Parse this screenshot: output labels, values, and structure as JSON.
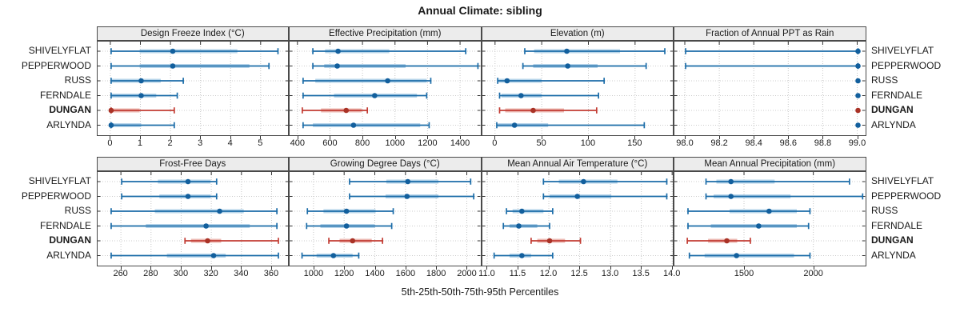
{
  "title": "Annual Climate: sibling",
  "xlabel": "5th-25th-50th-75th-95th Percentiles",
  "percentile_levels": [
    "5th",
    "25th",
    "50th",
    "75th",
    "95th"
  ],
  "sites": [
    "SHIVELYFLAT",
    "PEPPERWOOD",
    "RUSS",
    "FERNDALE",
    "DUNGAN",
    "ARLYNDA"
  ],
  "highlight_site": "DUNGAN",
  "colors": {
    "blue_line": "#1b6ca8",
    "blue_band": "#a9cce6",
    "blue_dot": "#125f9d",
    "red_line": "#c23b32",
    "red_band": "#e9aba4",
    "red_dot": "#a93226",
    "grid": "#c6c6c6",
    "row_grid": "#cccccc",
    "strip_bg": "#ececec",
    "border": "#4a4a4a",
    "tick": "#333333"
  },
  "chart_data": [
    {
      "type": "interval",
      "title": "Design Freeze Index (°C)",
      "grid_position": {
        "row": 0,
        "col": 0
      },
      "xlim": [
        -0.45,
        5.95
      ],
      "ticks": [
        0,
        1,
        2,
        3,
        4,
        5
      ],
      "tick_labels": [
        "0",
        "1",
        "2",
        "3",
        "4",
        "5"
      ],
      "series": [
        {
          "site": "SHIVELYFLAT",
          "p": [
            0,
            0.95,
            2.05,
            4.2,
            5.55
          ]
        },
        {
          "site": "PEPPERWOOD",
          "p": [
            0,
            0.95,
            2.05,
            4.6,
            5.25
          ]
        },
        {
          "site": "RUSS",
          "p": [
            0,
            0,
            1.0,
            1.65,
            2.4
          ]
        },
        {
          "site": "FERNDALE",
          "p": [
            0,
            0,
            1.0,
            1.5,
            2.2
          ]
        },
        {
          "site": "DUNGAN",
          "p": [
            0,
            0,
            0,
            0.95,
            2.1
          ]
        },
        {
          "site": "ARLYNDA",
          "p": [
            0,
            0,
            0,
            1.0,
            2.1
          ]
        }
      ]
    },
    {
      "type": "interval",
      "title": "Effective Precipitation (mm)",
      "grid_position": {
        "row": 0,
        "col": 1
      },
      "xlim": [
        347,
        1530
      ],
      "ticks": [
        400,
        600,
        800,
        1000,
        1200,
        1400
      ],
      "tick_labels": [
        "400",
        "600",
        "800",
        "1000",
        "1200",
        "1400"
      ],
      "series": [
        {
          "site": "SHIVELYFLAT",
          "p": [
            490,
            565,
            645,
            960,
            1430
          ]
        },
        {
          "site": "PEPPERWOOD",
          "p": [
            490,
            560,
            640,
            1060,
            1505
          ]
        },
        {
          "site": "RUSS",
          "p": [
            430,
            505,
            950,
            1190,
            1215
          ]
        },
        {
          "site": "FERNDALE",
          "p": [
            430,
            620,
            870,
            1130,
            1190
          ]
        },
        {
          "site": "DUNGAN",
          "p": [
            425,
            540,
            695,
            790,
            825
          ]
        },
        {
          "site": "ARLYNDA",
          "p": [
            430,
            490,
            740,
            1150,
            1205
          ]
        }
      ]
    },
    {
      "type": "interval",
      "title": "Elevation (m)",
      "grid_position": {
        "row": 0,
        "col": 2
      },
      "xlim": [
        -14.4,
        191.7
      ],
      "ticks": [
        0,
        50,
        100,
        150
      ],
      "tick_labels": [
        "0",
        "50",
        "100",
        "150"
      ],
      "series": [
        {
          "site": "SHIVELYFLAT",
          "p": [
            31,
            41,
            76,
            133,
            181
          ]
        },
        {
          "site": "PEPPERWOOD",
          "p": [
            29,
            40,
            77,
            109,
            161
          ]
        },
        {
          "site": "RUSS",
          "p": [
            2,
            3,
            12,
            49,
            116
          ]
        },
        {
          "site": "FERNDALE",
          "p": [
            4,
            6,
            27,
            49,
            110
          ]
        },
        {
          "site": "DUNGAN",
          "p": [
            4,
            10,
            40,
            73,
            108
          ]
        },
        {
          "site": "ARLYNDA",
          "p": [
            1,
            2,
            20,
            56,
            159
          ]
        }
      ]
    },
    {
      "type": "interval",
      "title": "Fraction of Annual PPT as Rain",
      "grid_position": {
        "row": 0,
        "col": 3
      },
      "xlim": [
        97.935,
        99.051
      ],
      "ticks": [
        98.0,
        98.2,
        98.4,
        98.6,
        98.8,
        99.0
      ],
      "tick_labels": [
        "98.0",
        "98.2",
        "98.4",
        "98.6",
        "98.8",
        "99.0"
      ],
      "series": [
        {
          "site": "SHIVELYFLAT",
          "p": [
            98.0,
            99.0,
            99.0,
            99.0,
            99.0
          ]
        },
        {
          "site": "PEPPERWOOD",
          "p": [
            98.0,
            99.0,
            99.0,
            99.0,
            99.0
          ]
        },
        {
          "site": "RUSS",
          "p": [
            99.0,
            99.0,
            99.0,
            99.0,
            99.0
          ]
        },
        {
          "site": "FERNDALE",
          "p": [
            99.0,
            99.0,
            99.0,
            99.0,
            99.0
          ]
        },
        {
          "site": "DUNGAN",
          "p": [
            99.0,
            99.0,
            99.0,
            99.0,
            99.0
          ]
        },
        {
          "site": "ARLYNDA",
          "p": [
            99.0,
            99.0,
            99.0,
            99.0,
            99.0
          ]
        }
      ]
    },
    {
      "type": "interval",
      "title": "Frost-Free Days",
      "grid_position": {
        "row": 1,
        "col": 0
      },
      "xlim": [
        244,
        371.7
      ],
      "ticks": [
        260,
        280,
        300,
        320,
        340,
        360
      ],
      "tick_labels": [
        "260",
        "280",
        "300",
        "320",
        "340",
        "360"
      ],
      "series": [
        {
          "site": "SHIVELYFLAT",
          "p": [
            260,
            284,
            304,
            319,
            323
          ]
        },
        {
          "site": "PEPPERWOOD",
          "p": [
            260,
            285,
            304,
            319,
            323
          ]
        },
        {
          "site": "RUSS",
          "p": [
            253,
            282,
            325,
            341,
            363
          ]
        },
        {
          "site": "FERNDALE",
          "p": [
            253,
            276,
            316,
            345,
            363
          ]
        },
        {
          "site": "DUNGAN",
          "p": [
            302,
            306,
            317,
            326,
            364
          ]
        },
        {
          "site": "ARLYNDA",
          "p": [
            253,
            290,
            321,
            329,
            364
          ]
        }
      ]
    },
    {
      "type": "interval",
      "title": "Growing Degree Days (°C)",
      "grid_position": {
        "row": 1,
        "col": 1
      },
      "xlim": [
        839,
        2094
      ],
      "ticks": [
        1000,
        1200,
        1400,
        1600,
        1800,
        2000
      ],
      "tick_labels": [
        "1000",
        "1200",
        "1400",
        "1600",
        "1800",
        "2000"
      ],
      "series": [
        {
          "site": "SHIVELYFLAT",
          "p": [
            1230,
            1470,
            1610,
            1810,
            2020
          ]
        },
        {
          "site": "PEPPERWOOD",
          "p": [
            1230,
            1465,
            1605,
            1810,
            2040
          ]
        },
        {
          "site": "RUSS",
          "p": [
            955,
            1060,
            1210,
            1400,
            1515
          ]
        },
        {
          "site": "FERNDALE",
          "p": [
            950,
            1040,
            1210,
            1395,
            1505
          ]
        },
        {
          "site": "DUNGAN",
          "p": [
            1095,
            1165,
            1250,
            1375,
            1445
          ]
        },
        {
          "site": "ARLYNDA",
          "p": [
            920,
            1015,
            1125,
            1250,
            1290
          ]
        }
      ]
    },
    {
      "type": "interval",
      "title": "Mean Annual Air Temperature (°C)",
      "grid_position": {
        "row": 1,
        "col": 2
      },
      "xlim": [
        10.91,
        14.03
      ],
      "ticks": [
        11.0,
        11.5,
        12.0,
        12.5,
        13.0,
        13.5,
        14.0
      ],
      "tick_labels": [
        "11.0",
        "11.5",
        "12.0",
        "12.5",
        "13.0",
        "13.5",
        "14.0"
      ],
      "series": [
        {
          "site": "SHIVELYFLAT",
          "p": [
            11.9,
            12.15,
            12.55,
            13.1,
            13.9
          ]
        },
        {
          "site": "PEPPERWOOD",
          "p": [
            11.9,
            12.0,
            12.45,
            13.0,
            13.9
          ]
        },
        {
          "site": "RUSS",
          "p": [
            11.3,
            11.4,
            11.55,
            11.9,
            12.05
          ]
        },
        {
          "site": "FERNDALE",
          "p": [
            11.25,
            11.35,
            11.5,
            11.8,
            12.0
          ]
        },
        {
          "site": "DUNGAN",
          "p": [
            11.7,
            11.8,
            12.0,
            12.25,
            12.5
          ]
        },
        {
          "site": "ARLYNDA",
          "p": [
            11.1,
            11.35,
            11.55,
            11.7,
            12.05
          ]
        }
      ]
    },
    {
      "type": "interval",
      "title": "Mean Annual Precipitation (mm)",
      "grid_position": {
        "row": 1,
        "col": 3
      },
      "xlim": [
        992,
        2380
      ],
      "ticks": [
        1500,
        2000
      ],
      "tick_labels": [
        "1500",
        "2000"
      ],
      "series": [
        {
          "site": "SHIVELYFLAT",
          "p": [
            1220,
            1295,
            1400,
            1715,
            2255
          ]
        },
        {
          "site": "PEPPERWOOD",
          "p": [
            1220,
            1275,
            1400,
            1830,
            2350
          ]
        },
        {
          "site": "RUSS",
          "p": [
            1090,
            1390,
            1675,
            1875,
            1970
          ]
        },
        {
          "site": "FERNDALE",
          "p": [
            1090,
            1255,
            1600,
            1875,
            1960
          ]
        },
        {
          "site": "DUNGAN",
          "p": [
            1085,
            1235,
            1370,
            1445,
            1540
          ]
        },
        {
          "site": "ARLYNDA",
          "p": [
            1100,
            1210,
            1440,
            1855,
            1970
          ]
        }
      ]
    }
  ]
}
